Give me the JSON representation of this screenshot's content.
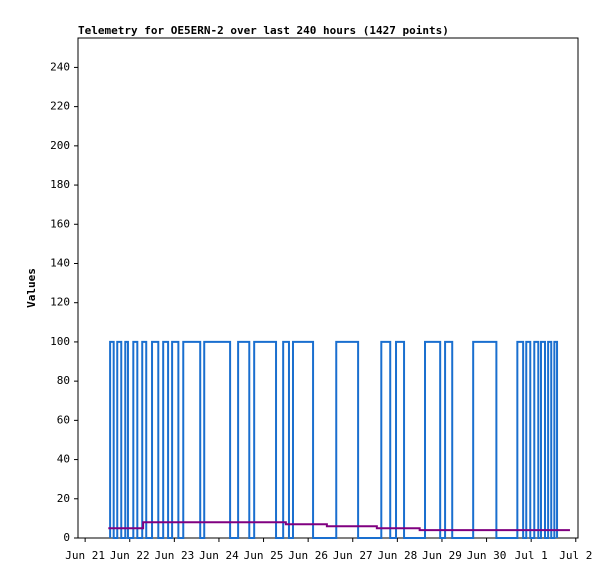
{
  "chart_data": {
    "type": "line",
    "title": "Telemetry for OE5ERN-2 over last 240 hours (1427 points)",
    "y_label": "Values",
    "xlim": [
      -0.16,
      11.05
    ],
    "xticks": [
      {
        "value": 0,
        "label": "Jun 21"
      },
      {
        "value": 1,
        "label": "Jun 22"
      },
      {
        "value": 2,
        "label": "Jun 23"
      },
      {
        "value": 3,
        "label": "Jun 24"
      },
      {
        "value": 4,
        "label": "Jun 25"
      },
      {
        "value": 5,
        "label": "Jun 26"
      },
      {
        "value": 6,
        "label": "Jun 27"
      },
      {
        "value": 7,
        "label": "Jun 28"
      },
      {
        "value": 8,
        "label": "Jun 29"
      },
      {
        "value": 9,
        "label": "Jun 30"
      },
      {
        "value": 10,
        "label": "Jul 1"
      },
      {
        "value": 11,
        "label": "Jul 2"
      }
    ],
    "ylim": [
      0,
      255
    ],
    "yticks": [
      0,
      20,
      40,
      60,
      80,
      100,
      120,
      140,
      160,
      180,
      200,
      220,
      240
    ],
    "series": [
      {
        "color": "#1a6fcf",
        "x": [
          0.56,
          0.56,
          0.64,
          0.64,
          0.72,
          0.72,
          0.81,
          0.81,
          0.9,
          0.9,
          0.96,
          0.96,
          1.08,
          1.08,
          1.17,
          1.17,
          1.28,
          1.28,
          1.37,
          1.37,
          1.5,
          1.5,
          1.64,
          1.64,
          1.75,
          1.75,
          1.86,
          1.86,
          1.95,
          1.95,
          2.09,
          2.09,
          2.2,
          2.2,
          2.58,
          2.58,
          2.67,
          2.67,
          3.25,
          3.25,
          3.43,
          3.43,
          3.68,
          3.68,
          3.79,
          3.79,
          4.28,
          4.28,
          4.44,
          4.44,
          4.57,
          4.57,
          4.66,
          4.66,
          5.11,
          5.11,
          5.63,
          5.63,
          6.12,
          6.12,
          6.64,
          6.64,
          6.84,
          6.84,
          6.97,
          6.97,
          7.15,
          7.15,
          7.62,
          7.62,
          7.96,
          7.96,
          8.07,
          8.07,
          8.23,
          8.23,
          8.7,
          8.7,
          9.22,
          9.22,
          9.69,
          9.69,
          9.82,
          9.82,
          9.89,
          9.89,
          9.98,
          9.98,
          10.07,
          10.07,
          10.16,
          10.16,
          10.22,
          10.22,
          10.31,
          10.31,
          10.38,
          10.38,
          10.45,
          10.45,
          10.52,
          10.52,
          10.58,
          10.58
        ],
        "values": [
          0,
          100,
          100,
          0,
          0,
          100,
          100,
          0,
          0,
          100,
          100,
          0,
          0,
          100,
          100,
          0,
          0,
          100,
          100,
          0,
          0,
          100,
          100,
          0,
          0,
          100,
          100,
          0,
          0,
          100,
          100,
          0,
          0,
          100,
          100,
          0,
          0,
          100,
          100,
          0,
          0,
          100,
          100,
          0,
          0,
          100,
          100,
          0,
          0,
          100,
          100,
          0,
          0,
          100,
          100,
          0,
          0,
          100,
          100,
          0,
          0,
          100,
          100,
          0,
          0,
          100,
          100,
          0,
          0,
          100,
          100,
          0,
          0,
          100,
          100,
          0,
          0,
          100,
          100,
          0,
          0,
          100,
          100,
          0,
          0,
          100,
          100,
          0,
          0,
          100,
          100,
          0,
          0,
          100,
          100,
          0,
          0,
          100,
          100,
          0,
          0,
          100,
          100,
          0
        ]
      },
      {
        "color": "#800080",
        "x": [
          0.52,
          1.3,
          1.3,
          4.5,
          4.5,
          5.42,
          5.42,
          6.54,
          6.54,
          7.5,
          7.5,
          10.87
        ],
        "values": [
          5,
          5,
          8,
          8,
          7,
          7,
          6,
          6,
          5,
          5,
          4,
          4
        ]
      }
    ]
  }
}
